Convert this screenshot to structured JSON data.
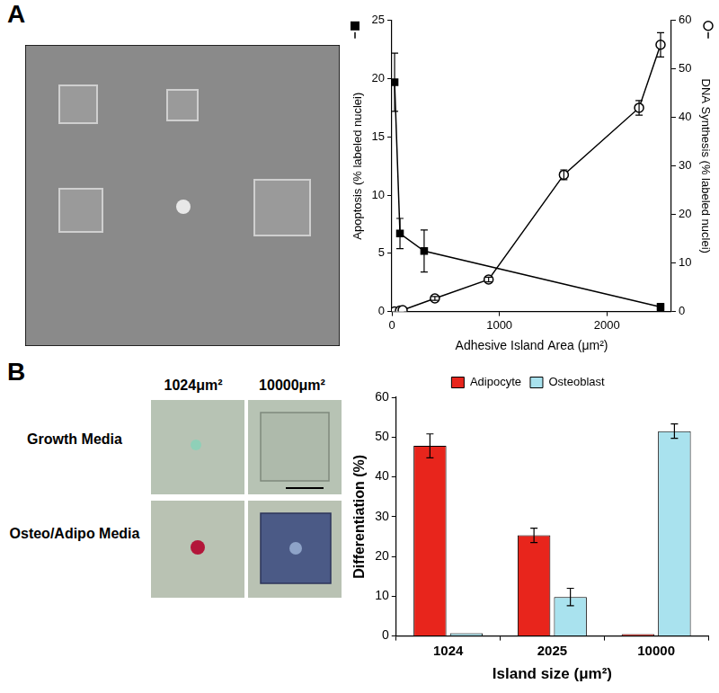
{
  "figure": {
    "panel_labels": [
      "A",
      "B"
    ],
    "micrograph_columns": [
      "1024μm²",
      "10000μm²"
    ],
    "micrograph_rows": [
      "Growth Media",
      "Osteo/Adipo Media"
    ]
  },
  "chart_data": [
    {
      "type": "line",
      "x_label": "Adhesive Island Area (μm²)",
      "y_label": "Apoptosis (% labeled nuclei)",
      "y2_label": "DNA Synthesis (% labeled nuclei)",
      "xlim": [
        0,
        2600
      ],
      "xticks": [
        0,
        1000,
        2000
      ],
      "ylim": [
        0,
        25
      ],
      "yticks": [
        0,
        5,
        10,
        15,
        20,
        25
      ],
      "y2lim": [
        0,
        60
      ],
      "y2ticks": [
        0,
        10,
        20,
        30,
        40,
        50,
        60
      ],
      "grid": false,
      "series": [
        {
          "axis": "y",
          "marker": "square",
          "color": "#000000",
          "x": [
            25,
            75,
            300,
            2500
          ],
          "values": [
            19.7,
            6.7,
            5.2,
            0.4
          ],
          "errors": [
            2.5,
            1.3,
            1.8,
            0.3
          ]
        },
        {
          "axis": "y2",
          "marker": "circle",
          "color": "#000000",
          "x": [
            25,
            75,
            100,
            400,
            900,
            1600,
            2300,
            2500
          ],
          "values": [
            0,
            0.2,
            0.3,
            2.7,
            6.6,
            28.2,
            42,
            55
          ],
          "errors": [
            0,
            0,
            0,
            0.4,
            0.5,
            1,
            1.5,
            2.5
          ]
        }
      ]
    },
    {
      "type": "bar",
      "x_label": "Island size (μm²)",
      "y_label": "Differentiation (%)",
      "categories": [
        "1024",
        "2025",
        "10000"
      ],
      "ylim": [
        0,
        60
      ],
      "yticks": [
        0,
        10,
        20,
        30,
        40,
        50,
        60
      ],
      "grid": false,
      "legend": "top",
      "series": [
        {
          "name": "Adipocyte",
          "color": "#e8251c",
          "values": [
            47.8,
            25.3,
            0.5
          ],
          "errors": [
            3,
            1.8,
            0
          ]
        },
        {
          "name": "Osteoblast",
          "color": "#a9e2ee",
          "values": [
            0.7,
            9.8,
            51.5
          ],
          "errors": [
            0,
            2.2,
            1.8
          ]
        }
      ]
    }
  ]
}
